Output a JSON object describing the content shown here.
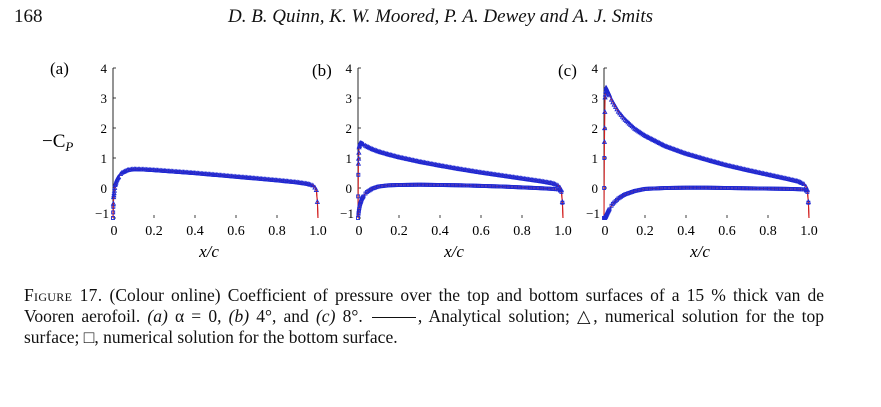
{
  "header": {
    "page_number": "168",
    "authors": "D. B. Quinn, K. W. Moored, P. A. Dewey and A. J. Smits"
  },
  "figure": {
    "y_axis_label": "−C",
    "y_axis_label_sub": "P",
    "x_axis_label": "x/c",
    "colors": {
      "analytical": "#d21f1f",
      "numerical": "#1f28d2",
      "axes": "#111111"
    },
    "panels": [
      {
        "label": "(a)"
      },
      {
        "label": "(b)"
      },
      {
        "label": "(c)"
      }
    ]
  },
  "chart_data": [
    {
      "type": "line",
      "title": "(a)",
      "xlabel": "x/c",
      "ylabel": "−C_P",
      "xlim": [
        0,
        1.0
      ],
      "ylim": [
        -1,
        4
      ],
      "xticks": [
        "0",
        "0.2",
        "0.4",
        "0.6",
        "0.8",
        "1.0"
      ],
      "yticks": [
        "−1",
        "0",
        "1",
        "2",
        "3",
        "4"
      ],
      "series": [
        {
          "marker": "line",
          "x": [
            0,
            0.003,
            0.01,
            0.02,
            0.04,
            0.07,
            0.1,
            0.15,
            0.2,
            0.3,
            0.4,
            0.5,
            0.6,
            0.7,
            0.8,
            0.9,
            0.95,
            0.98,
            0.995,
            1.0
          ],
          "y": [
            -1.0,
            -0.3,
            0.1,
            0.3,
            0.5,
            0.6,
            0.63,
            0.62,
            0.6,
            0.55,
            0.5,
            0.44,
            0.38,
            0.32,
            0.26,
            0.19,
            0.14,
            0.08,
            -0.1,
            -1.0
          ]
        },
        {
          "marker": "triangle",
          "x": [
            0,
            0.003,
            0.01,
            0.02,
            0.04,
            0.07,
            0.1,
            0.15,
            0.2,
            0.3,
            0.4,
            0.5,
            0.6,
            0.7,
            0.8,
            0.9,
            0.95,
            0.98,
            0.995,
            1.0
          ],
          "y": [
            -1.0,
            -0.3,
            0.1,
            0.3,
            0.5,
            0.6,
            0.63,
            0.62,
            0.6,
            0.55,
            0.5,
            0.44,
            0.38,
            0.32,
            0.26,
            0.19,
            0.14,
            0.08,
            -0.1,
            -1.0
          ]
        },
        {
          "marker": "square",
          "x": [
            0,
            0.003,
            0.01,
            0.02,
            0.04,
            0.07,
            0.1,
            0.15,
            0.2,
            0.3,
            0.4,
            0.5,
            0.6,
            0.7,
            0.8,
            0.9,
            0.95,
            0.98,
            0.995,
            1.0
          ],
          "y": [
            -1.0,
            -0.3,
            0.1,
            0.3,
            0.5,
            0.6,
            0.63,
            0.62,
            0.6,
            0.55,
            0.5,
            0.44,
            0.38,
            0.32,
            0.26,
            0.19,
            0.14,
            0.08,
            -0.1,
            -1.0
          ]
        }
      ]
    },
    {
      "type": "line",
      "title": "(b)",
      "xlabel": "x/c",
      "ylabel": "−C_P",
      "xlim": [
        0,
        1.0
      ],
      "ylim": [
        -1,
        4
      ],
      "xticks": [
        "0",
        "0.2",
        "0.4",
        "0.6",
        "0.8",
        "1.0"
      ],
      "yticks": [
        "−1",
        "0",
        "1",
        "2",
        "3",
        "4"
      ],
      "series": [
        {
          "marker": "line",
          "x": [
            0,
            0.002,
            0.005,
            0.01,
            0.02,
            0.04,
            0.07,
            0.1,
            0.15,
            0.2,
            0.3,
            0.4,
            0.5,
            0.6,
            0.7,
            0.8,
            0.9,
            0.95,
            0.98,
            0.995,
            1.0
          ],
          "y": [
            -1.0,
            0.8,
            1.35,
            1.5,
            1.48,
            1.4,
            1.3,
            1.22,
            1.12,
            1.03,
            0.88,
            0.75,
            0.63,
            0.52,
            0.42,
            0.32,
            0.22,
            0.16,
            0.08,
            -0.1,
            -1.0
          ]
        },
        {
          "marker": "triangle",
          "x": [
            0,
            0.002,
            0.005,
            0.01,
            0.02,
            0.04,
            0.07,
            0.1,
            0.15,
            0.2,
            0.3,
            0.4,
            0.5,
            0.6,
            0.7,
            0.8,
            0.9,
            0.95,
            0.98,
            0.995,
            1.0
          ],
          "y": [
            -1.0,
            0.8,
            1.35,
            1.5,
            1.48,
            1.4,
            1.3,
            1.22,
            1.12,
            1.03,
            0.88,
            0.75,
            0.63,
            0.52,
            0.42,
            0.32,
            0.22,
            0.16,
            0.08,
            -0.1,
            -1.0
          ]
        },
        {
          "marker": "square",
          "x": [
            0,
            0.005,
            0.01,
            0.02,
            0.04,
            0.07,
            0.1,
            0.15,
            0.2,
            0.3,
            0.4,
            0.5,
            0.6,
            0.7,
            0.8,
            0.9,
            0.95,
            0.98,
            0.995,
            1.0
          ],
          "y": [
            -1.0,
            -0.72,
            -0.55,
            -0.35,
            -0.15,
            -0.02,
            0.05,
            0.09,
            0.1,
            0.11,
            0.1,
            0.09,
            0.07,
            0.05,
            0.02,
            -0.01,
            -0.03,
            -0.05,
            -0.15,
            -1.0
          ]
        }
      ]
    },
    {
      "type": "line",
      "title": "(c)",
      "xlabel": "x/c",
      "ylabel": "−C_P",
      "xlim": [
        0,
        1.0
      ],
      "ylim": [
        -1,
        4
      ],
      "xticks": [
        "0",
        "0.2",
        "0.4",
        "0.6",
        "0.8",
        "1.0"
      ],
      "yticks": [
        "−1",
        "0",
        "1",
        "2",
        "3",
        "4"
      ],
      "series": [
        {
          "marker": "line",
          "x": [
            0,
            0.002,
            0.005,
            0.01,
            0.02,
            0.04,
            0.07,
            0.1,
            0.15,
            0.2,
            0.3,
            0.4,
            0.5,
            0.6,
            0.7,
            0.8,
            0.9,
            0.95,
            0.98,
            0.995,
            1.0
          ],
          "y": [
            -1.0,
            1.5,
            3.0,
            3.35,
            3.2,
            2.9,
            2.55,
            2.3,
            1.98,
            1.75,
            1.4,
            1.15,
            0.95,
            0.76,
            0.6,
            0.45,
            0.3,
            0.22,
            0.12,
            -0.1,
            -1.0
          ]
        },
        {
          "marker": "triangle",
          "x": [
            0,
            0.002,
            0.005,
            0.01,
            0.02,
            0.04,
            0.07,
            0.1,
            0.15,
            0.2,
            0.3,
            0.4,
            0.5,
            0.6,
            0.7,
            0.8,
            0.9,
            0.95,
            0.98,
            0.995,
            1.0
          ],
          "y": [
            -1.0,
            1.5,
            3.0,
            3.35,
            3.2,
            2.9,
            2.55,
            2.3,
            1.98,
            1.75,
            1.4,
            1.15,
            0.95,
            0.76,
            0.6,
            0.45,
            0.3,
            0.22,
            0.12,
            -0.1,
            -1.0
          ]
        },
        {
          "marker": "square",
          "x": [
            0,
            0.005,
            0.01,
            0.02,
            0.04,
            0.07,
            0.1,
            0.15,
            0.2,
            0.3,
            0.4,
            0.5,
            0.6,
            0.7,
            0.8,
            0.9,
            0.95,
            0.98,
            0.995,
            1.0
          ],
          "y": [
            -1.0,
            -1.0,
            -0.95,
            -0.8,
            -0.55,
            -0.35,
            -0.22,
            -0.1,
            -0.03,
            0.0,
            0.01,
            0.01,
            0.0,
            -0.01,
            -0.02,
            -0.03,
            -0.04,
            -0.05,
            -0.15,
            -1.0
          ]
        }
      ]
    }
  ],
  "caption": {
    "label": "Figure 17.",
    "part1": " (Colour online) Coefficient of pressure over the top and bottom surfaces of a 15 % thick van de Vooren aerofoil. ",
    "sub_a": "(a)",
    "eq_a": " α = 0, ",
    "sub_b": "(b)",
    "eq_b": " 4°, and ",
    "sub_c": "(c)",
    "eq_c": " 8°. ",
    "legend_line_text": ", Analytical solution; ",
    "tri_symbol": "△",
    "tri_text": ", numerical solution for the top surface; ",
    "sq_symbol": "□",
    "sq_text": ", numerical solution for the bottom surface."
  }
}
